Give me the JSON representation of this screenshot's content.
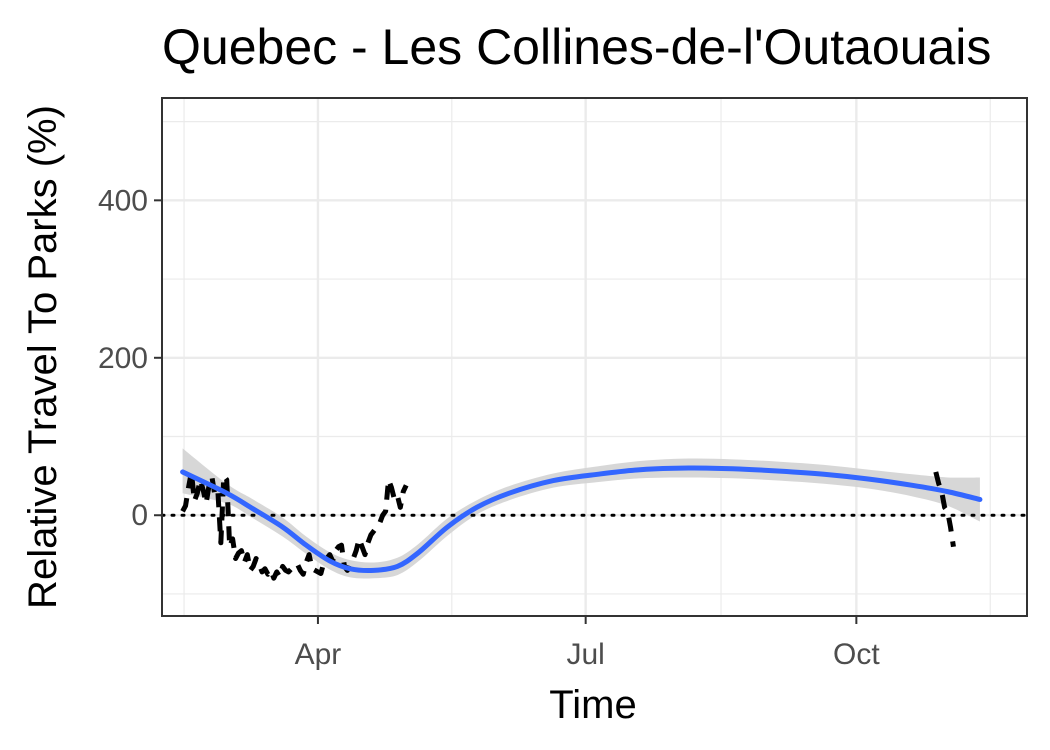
{
  "chart_data": {
    "type": "line",
    "title": "Quebec - Les Collines-de-l'Outaouais",
    "xlabel": "Time",
    "ylabel": "Relative Travel To Parks (%)",
    "x_ticks": [
      "Apr",
      "Jul",
      "Oct"
    ],
    "x_tick_dates": [
      "2020-04-01",
      "2020-07-01",
      "2020-10-01"
    ],
    "xlim": [
      "2020-02-08",
      "2020-11-28"
    ],
    "y_ticks": [
      0,
      200,
      400
    ],
    "ylim": [
      -128,
      530
    ],
    "grid": true,
    "reference_line": {
      "y": 0,
      "style": "dotted",
      "color": "#000000"
    },
    "series": [
      {
        "style": "dashed",
        "color": "#000000",
        "x": [
          "2020-02-15",
          "2020-02-16",
          "2020-02-17",
          "2020-02-18",
          "2020-02-19",
          "2020-02-20",
          "2020-02-21",
          "2020-02-22",
          "2020-02-23",
          "2020-02-24",
          "2020-02-25",
          "2020-02-26",
          "2020-02-27",
          "2020-02-28",
          "2020-02-29",
          "2020-03-01",
          "2020-03-02",
          "2020-03-03",
          "2020-03-04",
          "2020-03-05",
          "2020-03-06",
          "2020-03-07",
          "2020-03-08",
          "2020-03-09",
          "2020-03-10",
          "2020-03-11",
          "2020-03-12",
          "2020-03-13",
          "2020-03-14",
          "2020-03-15",
          "2020-03-16",
          "2020-03-17",
          "2020-03-18",
          "2020-03-19",
          "2020-03-20",
          "2020-03-21",
          "2020-03-22",
          "2020-03-23",
          "2020-03-24",
          "2020-03-25",
          "2020-03-26",
          "2020-03-27",
          "2020-03-28",
          "2020-03-29",
          "2020-03-30",
          "2020-03-31",
          "2020-04-01",
          "2020-04-02",
          "2020-04-03",
          "2020-04-04",
          "2020-04-05",
          "2020-04-06",
          "2020-04-07",
          "2020-04-08",
          "2020-04-09",
          "2020-04-10",
          "2020-04-11",
          "2020-04-12",
          "2020-04-13",
          "2020-04-14",
          "2020-04-15",
          "2020-04-16",
          "2020-04-17",
          "2020-04-18",
          "2020-04-19",
          "2020-04-20",
          "2020-04-21",
          "2020-04-22",
          "2020-04-23",
          "2020-04-24",
          "2020-04-25",
          "2020-04-26",
          "2020-04-27",
          "2020-04-28",
          "2020-04-29",
          "2020-04-30",
          "2020-05-01",
          "2020-05-02",
          "2020-05-03",
          "2020-05-04",
          "2020-05-05",
          "2020-05-06",
          "2020-05-07",
          "2020-05-08",
          "2020-05-09",
          "2020-05-10",
          "2020-05-11",
          "2020-05-12",
          "2020-05-13",
          "2020-05-14",
          "2020-05-15",
          "2020-05-16",
          "2020-05-17",
          "2020-05-18",
          "2020-05-19",
          "2020-05-20",
          "2020-05-21",
          "2020-05-22",
          "2020-05-23",
          "2020-05-24",
          "2020-05-25",
          "2020-05-26",
          "2020-05-27",
          "2020-05-28",
          "2020-05-29",
          "2020-05-30",
          "2020-05-31",
          "2020-06-01",
          "2020-06-02",
          "2020-06-03",
          "2020-06-04",
          "2020-06-05",
          "2020-06-06",
          "2020-06-07",
          "2020-06-08",
          "2020-06-09"
        ],
        "values": [
          5,
          12,
          35,
          55,
          18,
          28,
          45,
          32,
          15,
          38,
          48,
          25,
          30,
          -35,
          50,
          45,
          -40,
          -30,
          -55,
          -48,
          -45,
          -60,
          -50,
          -70,
          -65,
          -55,
          -62,
          -72,
          -68,
          -75,
          -70,
          -80,
          -72,
          -78,
          -65,
          -70,
          -72,
          -68,
          -66,
          -62,
          -70,
          -75,
          -60,
          -50,
          -68,
          -70,
          -72,
          -74,
          -60,
          -55,
          -50,
          -58,
          -45,
          -40,
          -38,
          -65,
          -70,
          -60,
          -55,
          -45,
          -30,
          -40,
          -50,
          -35,
          -25,
          -20,
          -15,
          -10,
          0,
          5,
          45,
          35,
          20,
          25,
          10,
          30,
          38,
          null,
          null,
          null,
          null,
          null,
          null,
          null,
          null,
          null,
          null,
          null,
          null,
          null,
          null,
          null,
          null,
          null,
          null,
          null,
          null,
          null,
          null,
          null,
          null,
          null,
          null,
          null,
          null,
          null,
          null,
          null,
          null,
          null,
          null,
          null,
          null,
          null,
          null,
          null
        ]
      },
      {
        "style": "dashed",
        "color": "#000000",
        "x": [
          "2020-10-28",
          "2020-10-29",
          "2020-10-30",
          "2020-10-31",
          "2020-11-01",
          "2020-11-02",
          "2020-11-03"
        ],
        "values": [
          55,
          40,
          30,
          10,
          5,
          -15,
          -40
        ]
      },
      {
        "style": "smooth",
        "color": "#3366ff",
        "band_color": "#d3d3d3",
        "x": [
          "2020-02-15",
          "2020-03-01",
          "2020-03-10",
          "2020-03-20",
          "2020-03-28",
          "2020-04-05",
          "2020-04-12",
          "2020-04-20",
          "2020-04-28",
          "2020-05-05",
          "2020-05-15",
          "2020-05-25",
          "2020-06-05",
          "2020-06-20",
          "2020-07-05",
          "2020-07-20",
          "2020-08-05",
          "2020-08-20",
          "2020-09-05",
          "2020-09-20",
          "2020-10-05",
          "2020-10-20",
          "2020-11-01",
          "2020-11-12"
        ],
        "values": [
          55,
          28,
          8,
          -15,
          -38,
          -58,
          -68,
          -70,
          -65,
          -48,
          -15,
          10,
          28,
          44,
          52,
          58,
          60,
          59,
          56,
          52,
          46,
          38,
          30,
          20
        ],
        "band_lower": [
          28,
          15,
          -4,
          -27,
          -49,
          -69,
          -79,
          -80,
          -76,
          -59,
          -26,
          1,
          19,
          35,
          42,
          47,
          48,
          47,
          44,
          40,
          34,
          24,
          12,
          -8
        ],
        "band_upper": [
          85,
          40,
          20,
          -3,
          -27,
          -47,
          -57,
          -60,
          -54,
          -37,
          -4,
          19,
          37,
          53,
          62,
          69,
          72,
          71,
          68,
          64,
          58,
          52,
          48,
          48
        ]
      }
    ]
  }
}
